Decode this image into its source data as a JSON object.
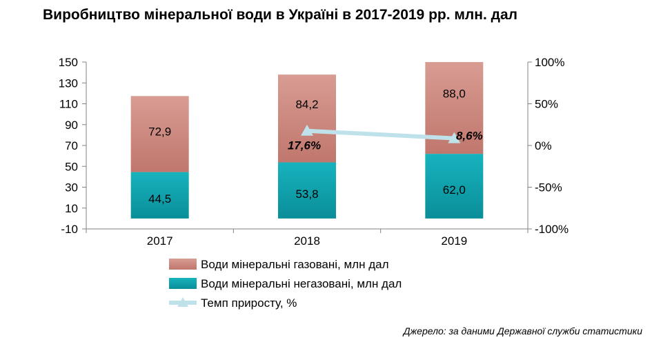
{
  "title": "Виробництво мінеральної води в Україні в 2017-2019 рр. млн. дал",
  "source": "Джерело: за даними Державної служби статистики",
  "colors": {
    "gas": "#C0776D",
    "gas_light": "#D89C93",
    "still": "#0A8E99",
    "still_light": "#17B3BE",
    "line": "#BFE2EA",
    "axis": "#808080"
  },
  "chart_data": {
    "type": "bar",
    "stacked": true,
    "categories": [
      "2017",
      "2018",
      "2019"
    ],
    "series": [
      {
        "name": "Води  мінеральні  негазовані,  млн дал",
        "values": [
          44.5,
          53.8,
          62.0
        ],
        "labels": [
          "44,5",
          "53,8",
          "62,0"
        ],
        "color": "still"
      },
      {
        "name": "Води  мінеральні  газовані,  млн дал",
        "values": [
          72.9,
          84.2,
          88.0
        ],
        "labels": [
          "72,9",
          "84,2",
          "88,0"
        ],
        "color": "gas"
      },
      {
        "name": "Темп приросту,  %",
        "type": "line",
        "axis": "right",
        "x": [
          "2018",
          "2019"
        ],
        "values": [
          17.6,
          8.6
        ],
        "labels": [
          "17,6%",
          "8,6%"
        ],
        "color": "line"
      }
    ],
    "legend_order": [
      1,
      0,
      2
    ],
    "y_left": {
      "ylim": [
        -10,
        150
      ],
      "ticks": [
        150,
        130,
        110,
        90,
        70,
        50,
        30,
        10,
        -10
      ]
    },
    "y_right": {
      "ylim": [
        -100,
        100
      ],
      "ticks": [
        100,
        50,
        0,
        -50,
        -100
      ],
      "tick_labels": [
        "100%",
        "50%",
        "0%",
        "-50%",
        "-100%"
      ]
    },
    "legend_position": "bottom"
  }
}
